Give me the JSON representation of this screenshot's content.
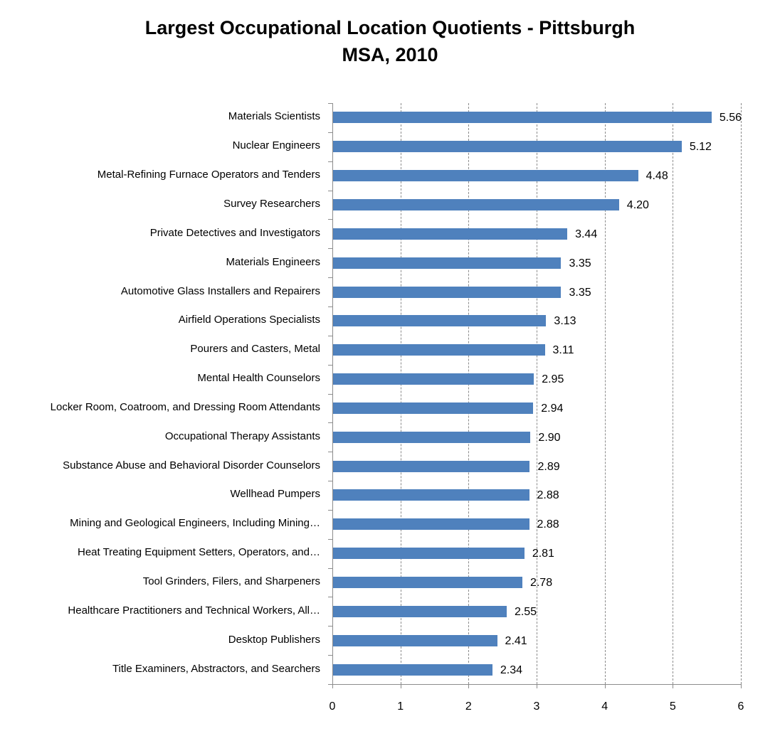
{
  "chart_data": {
    "type": "bar",
    "orientation": "horizontal",
    "title": "Largest Occupational Location Quotients - Pittsburgh MSA, 2010",
    "title_lines": [
      "Largest Occupational Location Quotients - Pittsburgh",
      "MSA, 2010"
    ],
    "xlabel": "",
    "ylabel": "",
    "xlim": [
      0,
      6
    ],
    "x_ticks": [
      "0",
      "1",
      "2",
      "3",
      "4",
      "5",
      "6"
    ],
    "grid": "vertical dashed",
    "legend": null,
    "bar_color": "#4f81bd",
    "categories": [
      "Materials Scientists",
      "Nuclear Engineers",
      "Metal-Refining Furnace Operators and Tenders",
      "Survey Researchers",
      "Private Detectives and Investigators",
      "Materials Engineers",
      "Automotive Glass Installers and Repairers",
      "Airfield Operations Specialists",
      "Pourers and Casters, Metal",
      "Mental Health Counselors",
      "Locker Room, Coatroom, and Dressing Room Attendants",
      "Occupational Therapy Assistants",
      "Substance Abuse and Behavioral Disorder Counselors",
      "Wellhead Pumpers",
      "Mining and Geological Engineers, Including Mining…",
      "Heat Treating Equipment Setters, Operators, and…",
      "Tool Grinders, Filers, and Sharpeners",
      "Healthcare Practitioners and Technical Workers, All…",
      "Desktop Publishers",
      "Title Examiners, Abstractors, and Searchers"
    ],
    "values": [
      5.56,
      5.12,
      4.48,
      4.2,
      3.44,
      3.35,
      3.35,
      3.13,
      3.11,
      2.95,
      2.94,
      2.9,
      2.89,
      2.88,
      2.88,
      2.81,
      2.78,
      2.55,
      2.41,
      2.34
    ],
    "value_labels": [
      "5.56",
      "5.12",
      "4.48",
      "4.20",
      "3.44",
      "3.35",
      "3.35",
      "3.13",
      "3.11",
      "2.95",
      "2.94",
      "2.90",
      "2.89",
      "2.88",
      "2.88",
      "2.81",
      "2.78",
      "2.55",
      "2.41",
      "2.34"
    ]
  }
}
